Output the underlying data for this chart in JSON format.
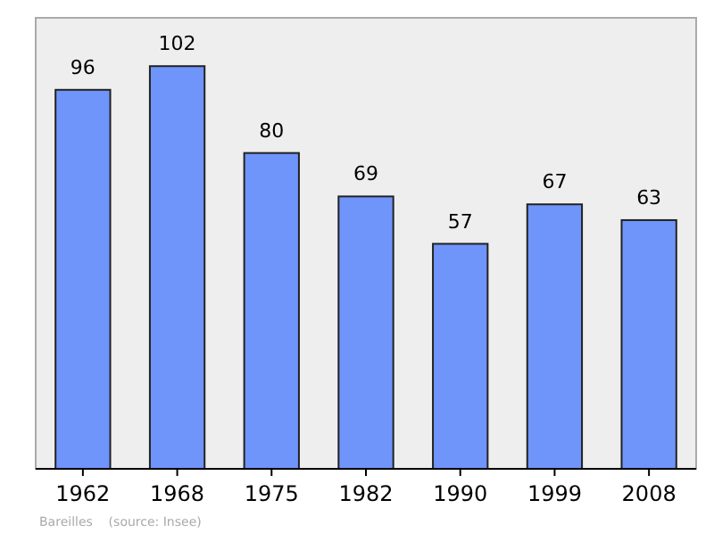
{
  "chart_data": {
    "type": "bar",
    "categories": [
      "1962",
      "1968",
      "1975",
      "1982",
      "1990",
      "1999",
      "2008"
    ],
    "values": [
      96,
      102,
      80,
      69,
      57,
      67,
      63
    ],
    "color": "#6f94fa",
    "data_labels": true,
    "annotations": [
      "Bareilles    (source: Insee)"
    ]
  }
}
